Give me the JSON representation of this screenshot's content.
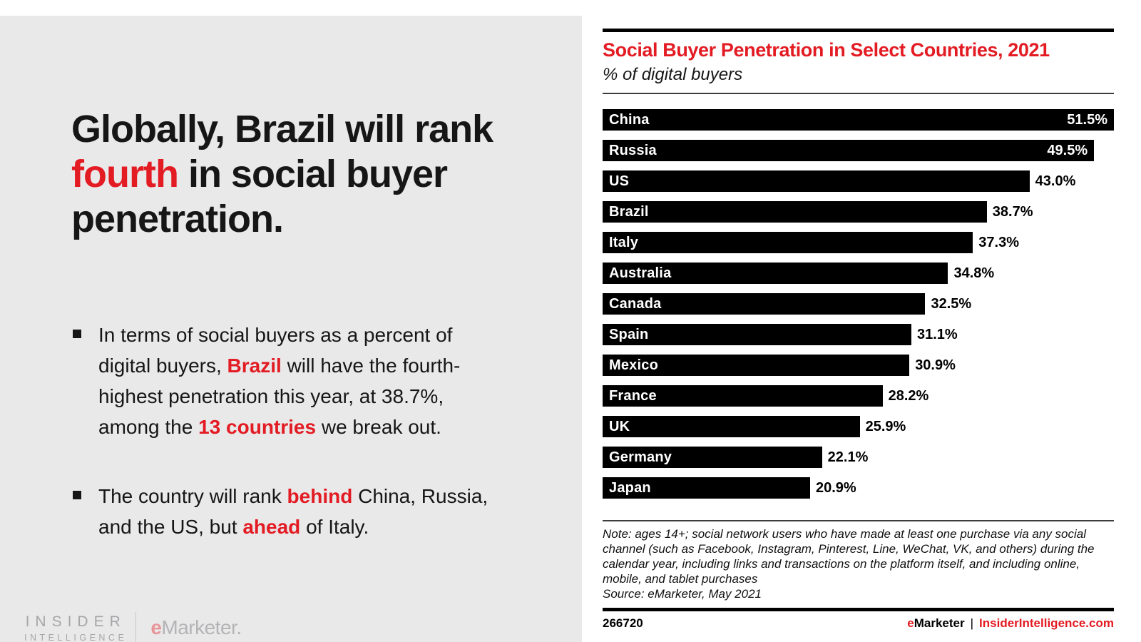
{
  "colors": {
    "accent_red": "#e31b23",
    "bar_black": "#000000",
    "panel_gray": "#e9e9ea"
  },
  "left_panel": {
    "headline": {
      "pre": "Globally, Brazil will rank ",
      "highlight": "fourth",
      "post": " in social buyer penetration."
    },
    "bullets": [
      {
        "segments": [
          {
            "t": "In terms of social buyers as a percent of digital buyers, ",
            "red": false
          },
          {
            "t": "Brazil",
            "red": true
          },
          {
            "t": " will have the fourth-highest penetration this year, at 38.7%, among the ",
            "red": false
          },
          {
            "t": "13 countries",
            "red": true
          },
          {
            "t": " we break out.",
            "red": false
          }
        ]
      },
      {
        "segments": [
          {
            "t": "The country will rank ",
            "red": false
          },
          {
            "t": "behind",
            "red": true
          },
          {
            "t": " China, Russia, and the US, but ",
            "red": false
          },
          {
            "t": "ahead",
            "red": true
          },
          {
            "t": " of Italy.",
            "red": false
          }
        ]
      }
    ],
    "logo": {
      "insider_line1": "INSIDER",
      "insider_line2": "INTELLIGENCE",
      "emarketer_e": "e",
      "emarketer_rest": "Marketer."
    }
  },
  "chart": {
    "title": "Social Buyer Penetration in Select Countries, 2021",
    "subtitle": "% of digital buyers",
    "chart_data": {
      "type": "bar",
      "orientation": "horizontal",
      "title": "Social Buyer Penetration in Select Countries, 2021",
      "xlabel": "% of digital buyers",
      "xmax": 51.5,
      "grid": false,
      "legend": false,
      "bar_color": "#000000",
      "categories": [
        "China",
        "Russia",
        "US",
        "Brazil",
        "Italy",
        "Australia",
        "Canada",
        "Spain",
        "Mexico",
        "France",
        "UK",
        "Germany",
        "Japan"
      ],
      "values": [
        51.5,
        49.5,
        43.0,
        38.7,
        37.3,
        34.8,
        32.5,
        31.1,
        30.9,
        28.2,
        25.9,
        22.1,
        20.9
      ],
      "value_labels": [
        "51.5%",
        "49.5%",
        "43.0%",
        "38.7%",
        "37.3%",
        "34.8%",
        "32.5%",
        "31.1%",
        "30.9%",
        "28.2%",
        "25.9%",
        "22.1%",
        "20.9%"
      ],
      "label_inside": [
        true,
        true,
        false,
        false,
        false,
        false,
        false,
        false,
        false,
        false,
        false,
        false,
        false
      ]
    },
    "note": "Note: ages 14+; social network users who have made at least one purchase via any social channel (such as Facebook, Instagram, Pinterest, Line, WeChat, VK, and others) during the calendar year, including links and transactions on the platform itself, and including online, mobile, and tablet purchases",
    "source": "Source: eMarketer, May 2021",
    "footer": {
      "chart_id": "266720",
      "brand_e": "e",
      "brand_rest": "Marketer",
      "separator": "|",
      "site": "InsiderIntelligence.com"
    }
  }
}
